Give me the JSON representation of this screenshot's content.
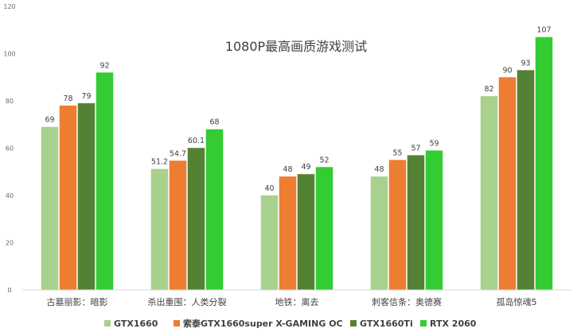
{
  "chart_data": {
    "type": "bar",
    "title": "1080P最高画质游戏测试",
    "categories": [
      "古墓丽影：暗影",
      "杀出重围：人类分裂",
      "地铁：离去",
      "刺客信条：奥德赛",
      "孤岛惊魂5"
    ],
    "series": [
      {
        "name": "GTX1660",
        "color": "#a9d18e",
        "values": [
          69,
          51.2,
          40,
          48,
          82
        ],
        "labels": [
          "69",
          "51.2",
          "40",
          "48",
          "82"
        ]
      },
      {
        "name": "索泰GTX1660super X-GAMING OC",
        "color": "#ed7d31",
        "values": [
          78,
          54.7,
          48,
          55,
          90
        ],
        "labels": [
          "78",
          "54.7",
          "48",
          "55",
          "90"
        ]
      },
      {
        "name": "GTX1660Ti",
        "color": "#548235",
        "values": [
          79,
          60.1,
          49,
          57,
          93
        ],
        "labels": [
          "79",
          "60.1",
          "49",
          "57",
          "93"
        ]
      },
      {
        "name": "RTX 2060",
        "color": "#33cc33",
        "values": [
          92,
          68,
          52,
          59,
          107
        ],
        "labels": [
          "92",
          "68",
          "52",
          "59",
          "107"
        ]
      }
    ],
    "ylim": [
      0,
      120
    ],
    "yticks": [
      0,
      20,
      40,
      60,
      80,
      100,
      120
    ],
    "xlabel": "",
    "ylabel": "",
    "grid": false,
    "legend_position": "bottom"
  }
}
